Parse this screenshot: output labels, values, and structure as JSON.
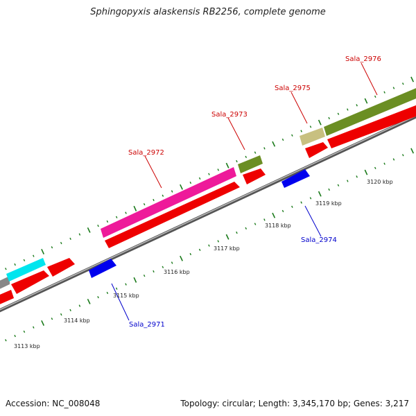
{
  "title": "Sphingopyxis alaskensis RB2256, complete genome",
  "footer": {
    "accession": "Accession: NC_008048",
    "summary": "Topology: circular; Length: 3,345,170 bp; Genes: 3,217"
  },
  "scale_labels": [
    "3113 kbp",
    "3114 kbp",
    "3115 kbp",
    "3116 kbp",
    "3117 kbp",
    "3118 kbp",
    "3119 kbp",
    "3120 kbp"
  ],
  "gene_labels": {
    "sala_2971": "Sala_2971",
    "sala_2972": "Sala_2972",
    "sala_2973": "Sala_2973",
    "sala_2974": "Sala_2974",
    "sala_2975": "Sala_2975",
    "sala_2976": "Sala_2976"
  },
  "colors": {
    "forward_gene": "#ff0000",
    "reverse_gene": "#0000ee",
    "backbone": "#888888",
    "tick": "#1a7a1a",
    "label_forward": "#cc0000",
    "label_reverse": "#0000cc",
    "cog_magenta": "#ee1a9a",
    "cog_olive": "#6b8e23",
    "cog_khaki": "#c8c080",
    "cog_cyan": "#00e5ee",
    "cog_gray": "#888888"
  }
}
